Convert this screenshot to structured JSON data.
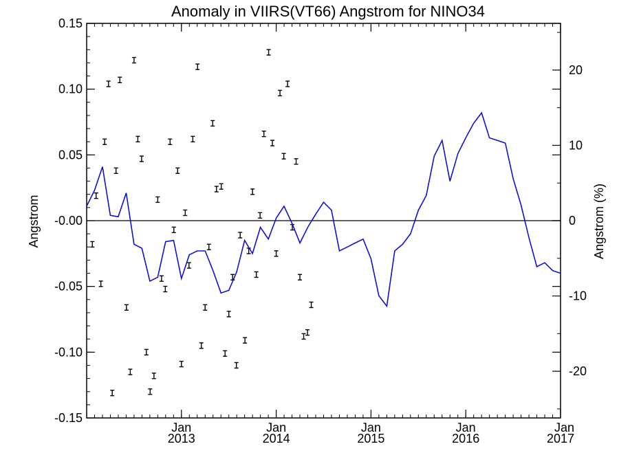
{
  "chart_data": {
    "type": "line",
    "title": "Anomaly in VIIRS(VT66) Angstrom for NINO34",
    "ylabel": "Angstrom",
    "y2label": "Angstrom (%)",
    "ylim": [
      -0.15,
      0.15
    ],
    "y2lim": [
      -26.2,
      26.2
    ],
    "yticks": [
      "0.15",
      "0.10",
      "0.05",
      "-0.00",
      "-0.05",
      "-0.10",
      "-0.15"
    ],
    "y2ticks": [
      "20",
      "10",
      "0",
      "-10",
      "-20"
    ],
    "xlim": [
      2012.0,
      2017.0
    ],
    "xticks": [
      {
        "x": 2013,
        "label1": "Jan",
        "label2": "2013"
      },
      {
        "x": 2014,
        "label1": "Jan",
        "label2": "2014"
      },
      {
        "x": 2015,
        "label1": "Jan",
        "label2": "2015"
      },
      {
        "x": 2016,
        "label1": "Jan",
        "label2": "2016"
      },
      {
        "x": 2017,
        "label1": "Jan",
        "label2": "2017"
      }
    ],
    "zero_line": true,
    "line_color": "#1010d0",
    "line_series": {
      "x": [
        2012.0,
        2012.083,
        2012.167,
        2012.25,
        2012.333,
        2012.417,
        2012.5,
        2012.583,
        2012.667,
        2012.75,
        2012.833,
        2012.917,
        2013.0,
        2013.083,
        2013.167,
        2013.25,
        2013.333,
        2013.417,
        2013.5,
        2013.583,
        2013.667,
        2013.75,
        2013.833,
        2013.917,
        2014.0,
        2014.083,
        2014.167,
        2014.25,
        2014.333,
        2014.417,
        2014.5,
        2014.583,
        2014.667,
        2014.75,
        2014.833,
        2014.917,
        2015.0,
        2015.083,
        2015.167,
        2015.25,
        2015.333,
        2015.417,
        2015.5,
        2015.583,
        2015.667,
        2015.75,
        2015.833,
        2015.917,
        2016.0,
        2016.083,
        2016.167,
        2016.25,
        2016.333,
        2016.417,
        2016.5,
        2016.583,
        2016.667,
        2016.75,
        2016.833,
        2016.917,
        2017.0
      ],
      "y": [
        0.011,
        0.023,
        0.041,
        0.004,
        0.003,
        0.021,
        -0.018,
        -0.021,
        -0.046,
        -0.043,
        -0.016,
        -0.015,
        -0.044,
        -0.026,
        -0.023,
        -0.023,
        -0.038,
        -0.055,
        -0.053,
        -0.039,
        -0.015,
        -0.025,
        -0.005,
        -0.014,
        0.002,
        0.011,
        -0.002,
        -0.017,
        -0.005,
        0.005,
        0.014,
        0.008,
        -0.023,
        -0.02,
        -0.017,
        -0.014,
        -0.029,
        -0.057,
        -0.065,
        -0.023,
        -0.018,
        -0.01,
        0.008,
        0.019,
        0.049,
        0.061,
        0.03,
        0.051,
        0.063,
        0.074,
        0.082,
        0.063,
        0.061,
        0.059,
        0.032,
        0.012,
        -0.013,
        -0.035,
        -0.032,
        -0.038,
        -0.04
      ]
    },
    "points": [
      {
        "x": 2012.06,
        "y": -0.018
      },
      {
        "x": 2012.1,
        "y": 0.019
      },
      {
        "x": 2012.15,
        "y": -0.048
      },
      {
        "x": 2012.19,
        "y": 0.06
      },
      {
        "x": 2012.23,
        "y": 0.104
      },
      {
        "x": 2012.27,
        "y": -0.131
      },
      {
        "x": 2012.31,
        "y": 0.038
      },
      {
        "x": 2012.35,
        "y": 0.107
      },
      {
        "x": 2012.42,
        "y": -0.066
      },
      {
        "x": 2012.46,
        "y": -0.115
      },
      {
        "x": 2012.5,
        "y": 0.122
      },
      {
        "x": 2012.54,
        "y": 0.062
      },
      {
        "x": 2012.58,
        "y": 0.047
      },
      {
        "x": 2012.63,
        "y": -0.1
      },
      {
        "x": 2012.67,
        "y": -0.13
      },
      {
        "x": 2012.71,
        "y": -0.118
      },
      {
        "x": 2012.75,
        "y": 0.016
      },
      {
        "x": 2012.79,
        "y": -0.044
      },
      {
        "x": 2012.83,
        "y": -0.052
      },
      {
        "x": 2012.88,
        "y": 0.06
      },
      {
        "x": 2012.92,
        "y": -0.007
      },
      {
        "x": 2012.96,
        "y": 0.038
      },
      {
        "x": 2013.0,
        "y": -0.109
      },
      {
        "x": 2013.04,
        "y": 0.006
      },
      {
        "x": 2013.08,
        "y": -0.034
      },
      {
        "x": 2013.12,
        "y": 0.062
      },
      {
        "x": 2013.17,
        "y": 0.117
      },
      {
        "x": 2013.21,
        "y": -0.095
      },
      {
        "x": 2013.25,
        "y": -0.066
      },
      {
        "x": 2013.29,
        "y": -0.02
      },
      {
        "x": 2013.33,
        "y": 0.074
      },
      {
        "x": 2013.37,
        "y": 0.024
      },
      {
        "x": 2013.42,
        "y": 0.026
      },
      {
        "x": 2013.46,
        "y": -0.101
      },
      {
        "x": 2013.5,
        "y": -0.071
      },
      {
        "x": 2013.54,
        "y": -0.043
      },
      {
        "x": 2013.58,
        "y": -0.11
      },
      {
        "x": 2013.62,
        "y": -0.011
      },
      {
        "x": 2013.67,
        "y": -0.091
      },
      {
        "x": 2013.71,
        "y": -0.023
      },
      {
        "x": 2013.75,
        "y": 0.022
      },
      {
        "x": 2013.79,
        "y": -0.041
      },
      {
        "x": 2013.83,
        "y": 0.004
      },
      {
        "x": 2013.87,
        "y": 0.066
      },
      {
        "x": 2013.92,
        "y": 0.128
      },
      {
        "x": 2013.96,
        "y": 0.059
      },
      {
        "x": 2014.0,
        "y": -0.025
      },
      {
        "x": 2014.04,
        "y": 0.097
      },
      {
        "x": 2014.08,
        "y": 0.049
      },
      {
        "x": 2014.12,
        "y": 0.104
      },
      {
        "x": 2014.17,
        "y": -0.005
      },
      {
        "x": 2014.21,
        "y": 0.045
      },
      {
        "x": 2014.25,
        "y": -0.043
      },
      {
        "x": 2014.29,
        "y": -0.088
      },
      {
        "x": 2014.33,
        "y": -0.085
      },
      {
        "x": 2014.37,
        "y": -0.064
      }
    ]
  }
}
